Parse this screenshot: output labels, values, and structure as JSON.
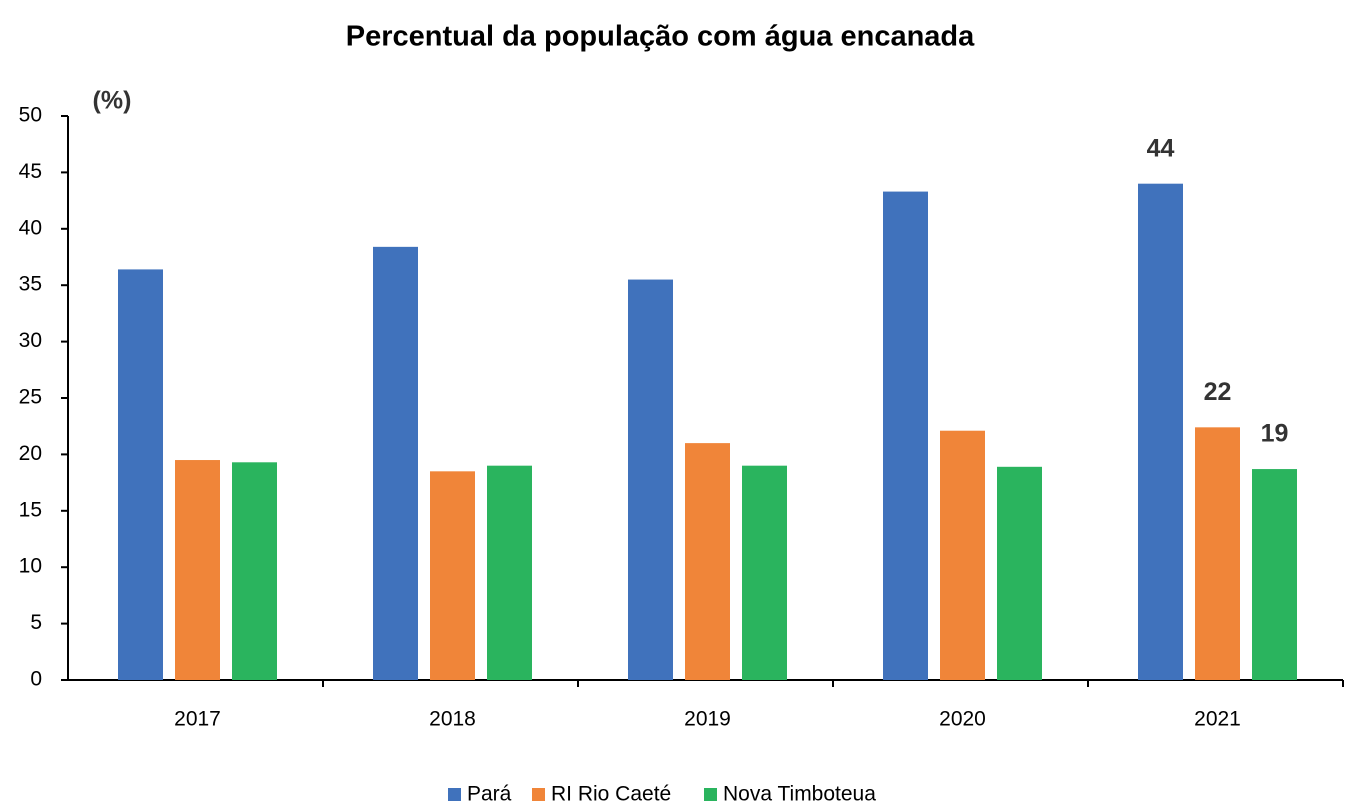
{
  "chart_data": {
    "type": "bar",
    "title": "Percentual da população com água encanada",
    "y_label": "(%)",
    "categories": [
      "2017",
      "2018",
      "2019",
      "2020",
      "2021"
    ],
    "series": [
      {
        "name": "Pará",
        "color": "#4072bc",
        "values": [
          36.4,
          38.4,
          35.5,
          43.3,
          44.0
        ],
        "value_labels": [
          null,
          null,
          null,
          null,
          "44"
        ]
      },
      {
        "name": "RI Rio Caeté",
        "color": "#f08539",
        "values": [
          19.5,
          18.5,
          21.0,
          22.1,
          22.4
        ],
        "value_labels": [
          null,
          null,
          null,
          null,
          "22"
        ]
      },
      {
        "name": "Nova Timboteua",
        "color": "#2ab45e",
        "values": [
          19.3,
          19.0,
          19.0,
          18.9,
          18.7
        ],
        "value_labels": [
          null,
          null,
          null,
          null,
          "19"
        ]
      }
    ],
    "ylim": [
      0,
      50
    ],
    "yticks": [
      0,
      5,
      10,
      15,
      20,
      25,
      30,
      35,
      40,
      45,
      50
    ],
    "grid": false,
    "legend": "bottom"
  }
}
